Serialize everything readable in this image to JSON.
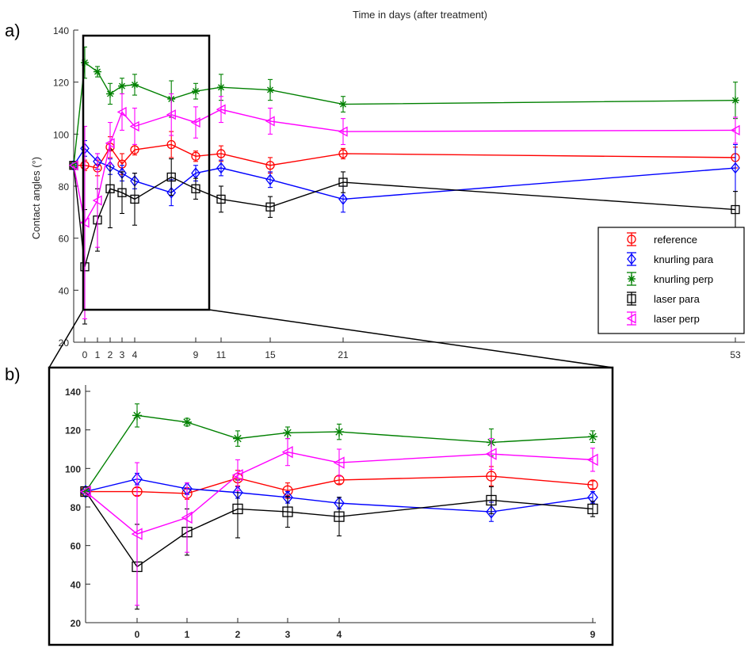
{
  "figure": {
    "panel_a_label": "a)",
    "panel_b_label": "b)",
    "top_axis_title": "Time in days (after treatment)"
  },
  "chart_data": [
    {
      "type": "line",
      "panel": "a)",
      "title": "",
      "xlabel": "Time in days (after treatment)",
      "ylabel": "Contact angles (°)",
      "ylim": [
        20,
        140
      ],
      "yticks": [
        20,
        40,
        60,
        80,
        100,
        120,
        140
      ],
      "xticks": [
        0,
        1,
        2,
        3,
        4,
        9,
        11,
        15,
        21,
        53
      ],
      "grid": false,
      "legend_position": "right",
      "zoom_box": "marks region shown in panel b)",
      "series": [
        {
          "name": "reference",
          "color": "#ff0000",
          "marker": "circle",
          "x": [
            -1,
            0,
            1,
            2,
            3,
            4,
            7,
            9,
            11,
            15,
            21,
            53
          ],
          "y": [
            88,
            88,
            87,
            95,
            88.5,
            94,
            96,
            91.5,
            92.5,
            88,
            92.5,
            91
          ],
          "err": [
            0,
            2,
            3,
            4,
            4,
            2,
            5,
            2,
            3,
            3,
            2,
            4
          ]
        },
        {
          "name": "knurling para",
          "color": "#0000ff",
          "marker": "diamond",
          "x": [
            -1,
            0,
            1,
            2,
            3,
            4,
            7,
            9,
            11,
            15,
            21,
            53
          ],
          "y": [
            88,
            94.5,
            89.5,
            87.5,
            85,
            82,
            77.5,
            85,
            87,
            82.5,
            75,
            87
          ],
          "err": [
            0,
            3,
            3,
            3,
            3,
            3,
            5,
            3,
            3,
            3,
            5,
            9
          ]
        },
        {
          "name": "knurling perp",
          "color": "#008000",
          "marker": "star",
          "x": [
            -1,
            0,
            1,
            2,
            3,
            4,
            7,
            9,
            11,
            15,
            21,
            53
          ],
          "y": [
            88,
            127.5,
            124,
            115.5,
            118.5,
            119,
            113.5,
            116.5,
            118,
            117,
            111.5,
            113
          ],
          "err": [
            0,
            6,
            2,
            4,
            3,
            4,
            7,
            3,
            5,
            4,
            3,
            7
          ]
        },
        {
          "name": "laser para",
          "color": "#000000",
          "marker": "square",
          "x": [
            -1,
            0,
            1,
            2,
            3,
            4,
            7,
            9,
            11,
            15,
            21,
            53
          ],
          "y": [
            88,
            49,
            67,
            79,
            77.5,
            75,
            83.5,
            79,
            75,
            72,
            81.5,
            71
          ],
          "err": [
            0,
            22,
            12,
            15,
            8,
            10,
            7,
            4,
            5,
            4,
            4,
            7
          ]
        },
        {
          "name": "laser perp",
          "color": "#ff00ff",
          "marker": "triangle-left",
          "x": [
            -1,
            0,
            1,
            2,
            3,
            4,
            7,
            9,
            11,
            15,
            21,
            53
          ],
          "y": [
            88,
            66,
            74.5,
            96.5,
            108.5,
            103,
            107.5,
            104.5,
            109.5,
            105,
            101,
            101.5
          ],
          "err": [
            0,
            37,
            18,
            8,
            7,
            7,
            8,
            6,
            5,
            5,
            5,
            5
          ]
        }
      ]
    },
    {
      "type": "line",
      "panel": "b)",
      "title": "",
      "xlabel": "",
      "ylabel": "",
      "ylim": [
        20,
        140
      ],
      "yticks": [
        20,
        40,
        60,
        80,
        100,
        120,
        140
      ],
      "xticks": [
        0,
        1,
        2,
        3,
        4,
        9
      ],
      "grid": false,
      "legend_position": "none",
      "note": "magnified view of days 0-9, same series as panel a)"
    }
  ]
}
